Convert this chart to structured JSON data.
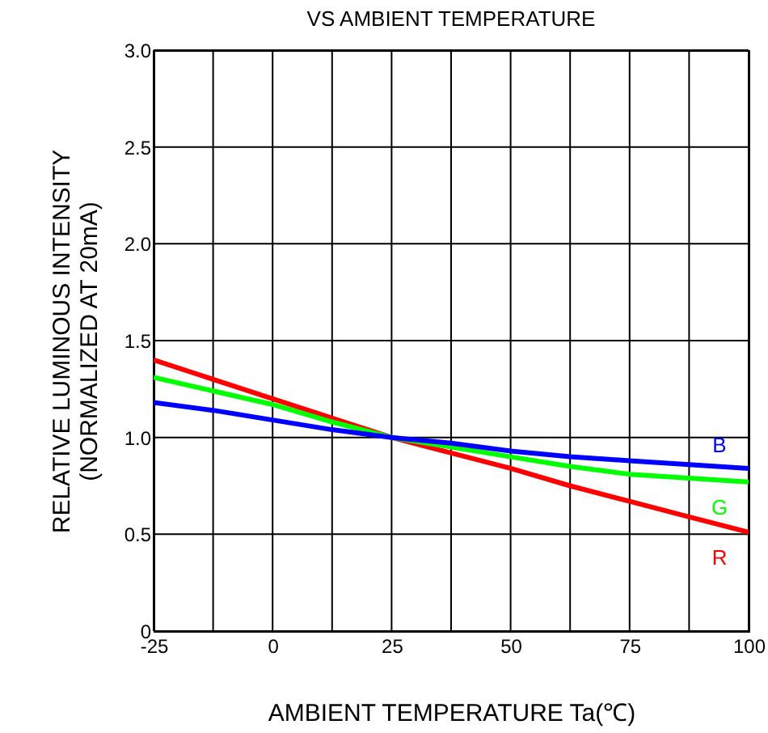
{
  "chart_data": {
    "type": "line",
    "title": "VS AMBIENT TEMPERATURE",
    "xlabel": "AMBIENT TEMPERATURE Ta(℃)",
    "ylabel": "RELATIVE LUMINOUS INTENSITY\n(NORMALIZED AT 20mA)",
    "x": [
      -25,
      -12.5,
      0,
      12.5,
      25,
      37.5,
      50,
      62.5,
      75,
      87.5,
      100
    ],
    "series": [
      {
        "name": "R",
        "color": "#ff0000",
        "values": [
          1.4,
          1.3,
          1.2,
          1.1,
          1.0,
          0.92,
          0.84,
          0.75,
          0.67,
          0.59,
          0.51
        ]
      },
      {
        "name": "G",
        "color": "#00ff00",
        "values": [
          1.31,
          1.24,
          1.17,
          1.08,
          1.0,
          0.95,
          0.9,
          0.85,
          0.81,
          0.79,
          0.77
        ]
      },
      {
        "name": "B",
        "color": "#0000ff",
        "values": [
          1.18,
          1.14,
          1.09,
          1.04,
          1.0,
          0.97,
          0.93,
          0.9,
          0.88,
          0.86,
          0.84
        ]
      }
    ],
    "xlim": [
      -25,
      100
    ],
    "xticks": [
      -25,
      {
        "value": -12.5,
        "label": null
      },
      0,
      {
        "value": 12.5,
        "label": null
      },
      25,
      {
        "value": 37.5,
        "label": null
      },
      50,
      {
        "value": 62.5,
        "label": null
      },
      75,
      {
        "value": 87.5,
        "label": null
      },
      100
    ],
    "ylim": [
      0,
      3
    ],
    "yticks": [
      0,
      0.5,
      {
        "value": 1,
        "label": "1.0"
      },
      1.5,
      {
        "value": 2,
        "label": "2.0"
      },
      2.5,
      {
        "value": 3,
        "label": "3.0"
      }
    ],
    "grid": true,
    "legend": false,
    "marker": "none",
    "line_style": "solid"
  }
}
